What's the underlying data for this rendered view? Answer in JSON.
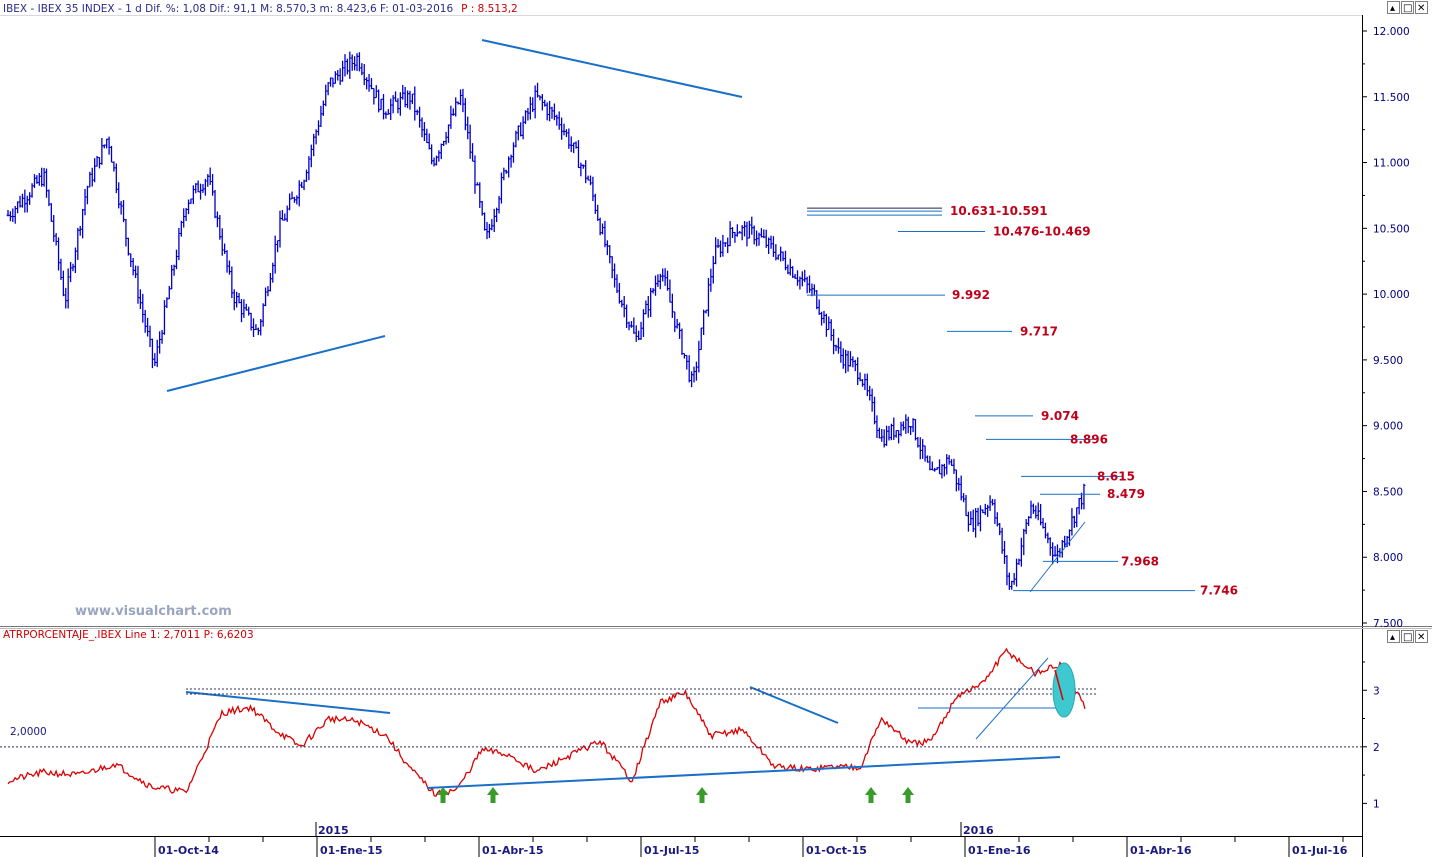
{
  "header": {
    "label": "IBEX - IBEX 35 INDEX - 1 d Dif. %: 1,08 Dif.: 91,1 M: 8.570,3 m: 8.423,6 F: 01-03-2016",
    "price": "P : 8.513,2"
  },
  "indicator": {
    "label": "ATRPORCENTAJE_.IBEX Line 1: 2,7011 P: 6,6203",
    "ref_label": "2,0000"
  },
  "watermark": "www.visualchart.com",
  "window_controls": [
    "▴",
    "□",
    "✕"
  ],
  "panel_controls": [
    "▴",
    "□",
    "✕"
  ],
  "colors": {
    "price": "#0000cc",
    "indicator": "#dd0000",
    "trend": "#1a6fc8",
    "levels": "#1a6fc8",
    "level_text": "#c0001a",
    "highlight": "#3ec8d0",
    "arrow": "#3a9a2a"
  },
  "chart_data": [
    {
      "type": "line",
      "title": "IBEX 35 INDEX",
      "x_tick_labels": [
        "01-Oct-14",
        "01-Ene-15",
        "01-Abr-15",
        "01-Jul-15",
        "01-Oct-15",
        "01-Ene-16",
        "01-Abr-16",
        "01-Jul-16"
      ],
      "year_labels": [
        "2015",
        "2016"
      ],
      "y_tick_labels": [
        "12.000",
        "11.500",
        "11.000",
        "10.500",
        "10.000",
        "9.500",
        "9.000",
        "8.500",
        "8.000",
        "7.500"
      ],
      "ylim": [
        7500,
        12000
      ],
      "x_range_days": [
        0,
        681
      ],
      "series": [
        {
          "x": [
            0,
            20,
            32,
            44,
            56,
            66,
            82,
            100,
            112,
            126,
            140,
            152,
            166,
            180,
            196,
            210,
            226,
            238,
            254,
            268,
            282,
            296,
            310,
            326,
            340,
            352,
            366,
            384,
            396,
            408,
            420,
            432,
            452,
            466,
            478,
            490,
            506,
            518,
            528,
            540,
            552,
            562,
            574,
            588,
            604
          ],
          "values": [
            10600,
            10900,
            9950,
            10800,
            11200,
            10450,
            9450,
            10700,
            10900,
            10000,
            9700,
            10500,
            10900,
            11600,
            11800,
            11400,
            11500,
            11000,
            11500,
            10400,
            11100,
            11500,
            11300,
            10850,
            10100,
            9650,
            10200,
            9300,
            10300,
            10500,
            10450,
            10300,
            10000,
            9550,
            9400,
            8900,
            9050,
            8600,
            8750,
            8250,
            8450,
            7750,
            8400,
            8000,
            8513
          ]
        }
      ],
      "levels": [
        {
          "label": "10.631-10.591",
          "value": 10631
        },
        {
          "label": "10.476-10.469",
          "value": 10476
        },
        {
          "label": "9.992",
          "value": 9992
        },
        {
          "label": "9.717",
          "value": 9717
        },
        {
          "label": "9.074",
          "value": 9074
        },
        {
          "label": "8.896",
          "value": 8896
        },
        {
          "label": "8.615",
          "value": 8615
        },
        {
          "label": "8.479",
          "value": 8479
        },
        {
          "label": "7.968",
          "value": 7968
        },
        {
          "label": "7.746",
          "value": 7746
        }
      ]
    },
    {
      "type": "line",
      "title": "ATRPORCENTAJE_.IBEX",
      "y_tick_labels": [
        "3",
        "2",
        "1"
      ],
      "ylim": [
        0.6,
        3.8
      ],
      "series": [
        {
          "x": [
            0,
            20,
            40,
            60,
            80,
            100,
            120,
            136,
            150,
            164,
            180,
            196,
            212,
            226,
            240,
            252,
            266,
            282,
            296,
            312,
            332,
            350,
            366,
            380,
            394,
            412,
            430,
            448,
            462,
            478,
            490,
            506,
            518,
            532,
            546,
            560,
            576,
            590,
            604
          ],
          "values": [
            1.4,
            1.55,
            1.5,
            1.7,
            1.3,
            1.2,
            2.6,
            2.7,
            2.3,
            2.0,
            2.5,
            2.45,
            2.2,
            1.6,
            1.15,
            1.25,
            1.95,
            1.85,
            1.55,
            1.8,
            2.1,
            1.4,
            2.8,
            2.95,
            2.2,
            2.3,
            1.65,
            1.6,
            1.65,
            1.65,
            2.5,
            2.05,
            2.1,
            2.9,
            3.1,
            3.7,
            3.3,
            3.45,
            2.7
          ]
        }
      ]
    }
  ]
}
